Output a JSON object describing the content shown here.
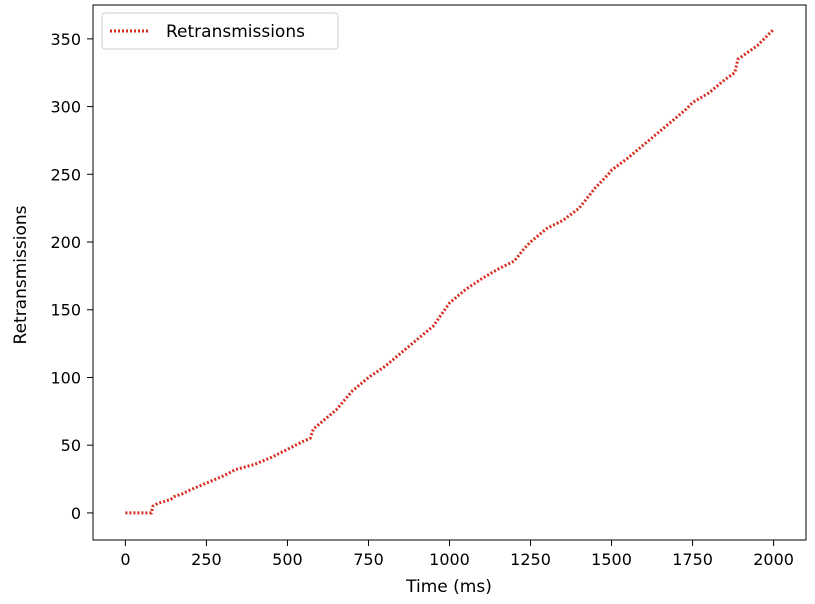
{
  "chart_data": {
    "type": "line",
    "xlabel": "Time (ms)",
    "ylabel": "Retransmissions",
    "xlim": [
      -100,
      2100
    ],
    "ylim": [
      -20,
      375
    ],
    "x_ticks": [
      0,
      250,
      500,
      750,
      1000,
      1250,
      1500,
      1750,
      2000
    ],
    "y_ticks": [
      0,
      50,
      100,
      150,
      200,
      250,
      300,
      350
    ],
    "grid": false,
    "legend_position": "upper left",
    "series": [
      {
        "name": "Retransmissions",
        "color": "#d62d20",
        "line_style": "dotted",
        "x": [
          0,
          80,
          85,
          100,
          140,
          150,
          175,
          200,
          250,
          300,
          340,
          400,
          450,
          500,
          550,
          570,
          580,
          600,
          650,
          700,
          750,
          800,
          850,
          900,
          950,
          1000,
          1050,
          1100,
          1150,
          1200,
          1230,
          1250,
          1300,
          1350,
          1400,
          1450,
          1470,
          1490,
          1500,
          1550,
          1600,
          1650,
          1700,
          1730,
          1750,
          1800,
          1850,
          1880,
          1890,
          1950,
          2000
        ],
        "y": [
          0,
          0,
          5,
          7,
          10,
          12,
          14,
          17,
          22,
          27,
          32,
          36,
          41,
          47,
          53,
          55,
          62,
          66,
          76,
          90,
          100,
          108,
          118,
          128,
          138,
          155,
          165,
          173,
          180,
          186,
          195,
          200,
          210,
          216,
          225,
          240,
          245,
          250,
          253,
          262,
          272,
          282,
          292,
          298,
          303,
          310,
          320,
          325,
          335,
          345,
          357
        ]
      }
    ]
  }
}
